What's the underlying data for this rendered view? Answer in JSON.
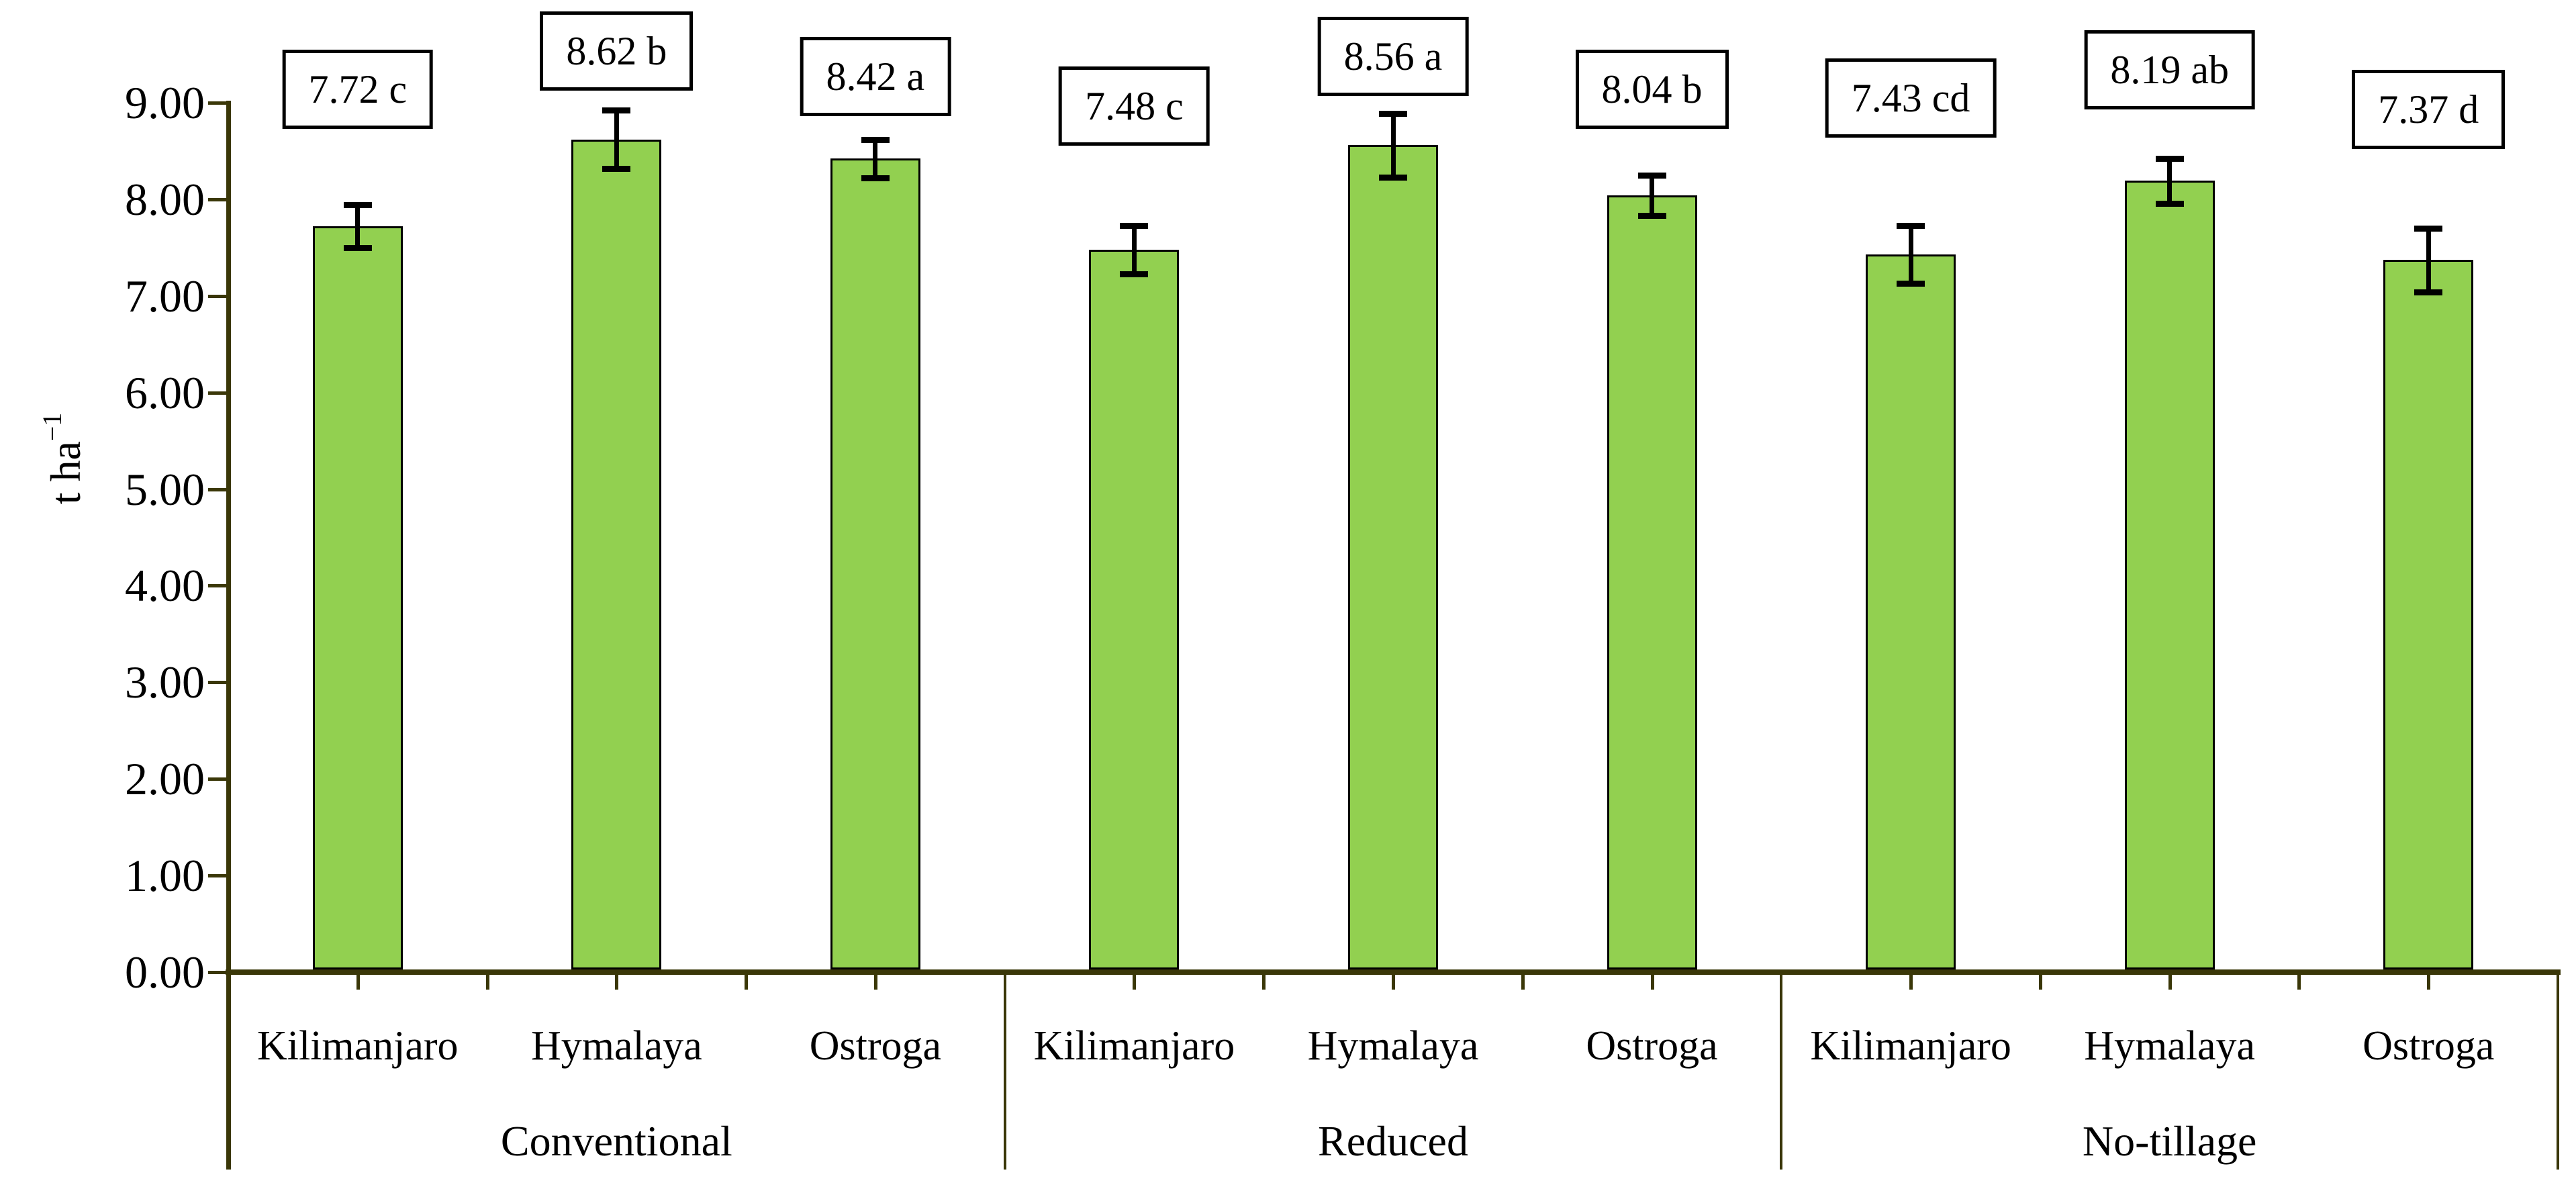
{
  "chart_data": {
    "type": "bar",
    "title": "",
    "ylabel_base": "t ha",
    "ylabel_exponent": "−1",
    "bar_color": "#92D050",
    "bar_border_color": "#000000",
    "error_bar_color": "#000000",
    "axis_color": "#3a3708",
    "label_box_border_color": "#000000",
    "y_axis": {
      "min": 0,
      "max": 9,
      "step": 1,
      "tick_labels": [
        "0.00",
        "1.00",
        "2.00",
        "3.00",
        "4.00",
        "5.00",
        "6.00",
        "7.00",
        "8.00",
        "9.00"
      ]
    },
    "legend": "none",
    "grid": "off",
    "groups": [
      {
        "label": "Conventional",
        "bars": [
          {
            "category": "Kilimanjaro",
            "value": 7.72,
            "error": 0.22,
            "label": "7.72 c"
          },
          {
            "category": "Hymalaya",
            "value": 8.62,
            "error": 0.3,
            "label": "8.62 b"
          },
          {
            "category": "Ostroga",
            "value": 8.42,
            "error": 0.2,
            "label": "8.42 a"
          }
        ]
      },
      {
        "label": "Reduced",
        "bars": [
          {
            "category": "Kilimanjaro",
            "value": 7.48,
            "error": 0.25,
            "label": "7.48 c"
          },
          {
            "category": "Hymalaya",
            "value": 8.56,
            "error": 0.33,
            "label": "8.56 a"
          },
          {
            "category": "Ostroga",
            "value": 8.04,
            "error": 0.21,
            "label": "8.04 b"
          }
        ]
      },
      {
        "label": "No-tillage",
        "bars": [
          {
            "category": "Kilimanjaro",
            "value": 7.43,
            "error": 0.3,
            "label": "7.43 cd"
          },
          {
            "category": "Hymalaya",
            "value": 8.19,
            "error": 0.23,
            "label": "8.19 ab"
          },
          {
            "category": "Ostroga",
            "value": 7.37,
            "error": 0.33,
            "label": "7.37 d"
          }
        ]
      }
    ]
  }
}
